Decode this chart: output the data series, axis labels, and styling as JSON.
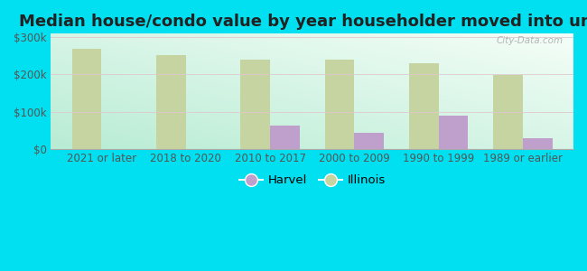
{
  "title": "Median house/condo value by year householder moved into unit",
  "categories": [
    "2021 or later",
    "2018 to 2020",
    "2010 to 2017",
    "2000 to 2009",
    "1990 to 1999",
    "1989 or earlier"
  ],
  "harvel_values": [
    0,
    0,
    63000,
    42000,
    90000,
    27000
  ],
  "illinois_values": [
    270000,
    253000,
    241000,
    239000,
    231000,
    199000
  ],
  "harvel_color": "#bf9fcc",
  "illinois_color": "#c5d4a0",
  "background_grad_left": "#b8ecd4",
  "background_grad_right": "#f0faf0",
  "outer_background": "#00e0f0",
  "ylabel_ticks": [
    "$0",
    "$100k",
    "$200k",
    "$300k"
  ],
  "ytick_values": [
    0,
    100000,
    200000,
    300000
  ],
  "ylim": [
    0,
    310000
  ],
  "bar_width": 0.35,
  "legend_harvel": "Harvel",
  "legend_illinois": "Illinois",
  "watermark": "City-Data.com",
  "title_fontsize": 13,
  "tick_fontsize": 8.5,
  "legend_fontsize": 9.5
}
